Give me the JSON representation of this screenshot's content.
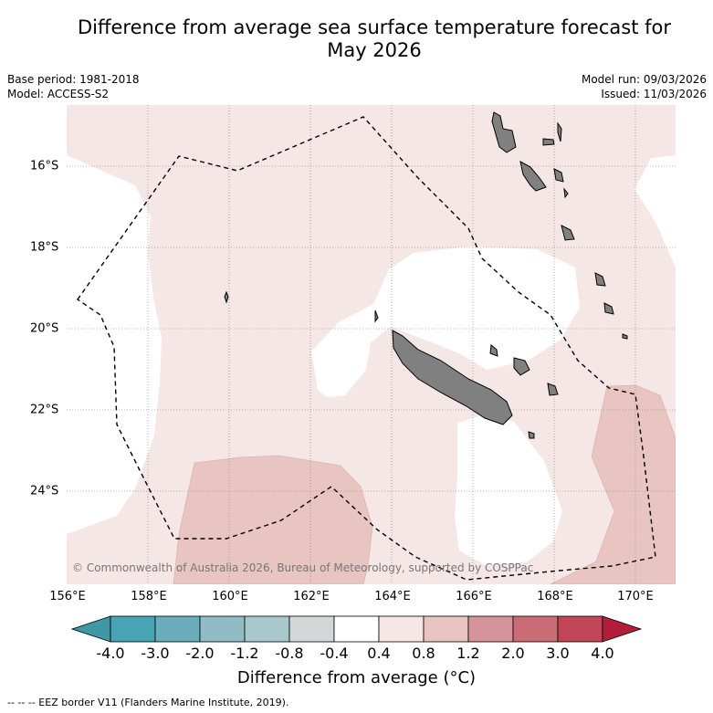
{
  "title_line1": "Difference from average sea surface temperature forecast for",
  "title_line2": "May 2026",
  "base_period": "Base period: 1981-2018",
  "model": "Model: ACCESS-S2",
  "model_run": "Model run: 09/03/2026",
  "issued": "Issued: 11/03/2026",
  "copyright": "© Commonwealth of Australia 2026, Bureau of Meteorology, supported by COSPPac",
  "lon_labels": [
    "156°E",
    "158°E",
    "160°E",
    "162°E",
    "164°E",
    "166°E",
    "168°E",
    "170°E"
  ],
  "lat_labels": [
    "16°S",
    "18°S",
    "20°S",
    "22°S",
    "24°S"
  ],
  "colorbar": {
    "title": "Difference from average (°C)",
    "tick_labels": [
      "-4.0",
      "-3.0",
      "-2.0",
      "-1.2",
      "-0.8",
      "-0.4",
      "0.4",
      "0.8",
      "1.2",
      "2.0",
      "3.0",
      "4.0"
    ],
    "colors": [
      "#3e98a6",
      "#46a4b4",
      "#6aaebc",
      "#8fbcc5",
      "#a8c8cc",
      "#d4d7d7",
      "#ffffff",
      "#f5e7e5",
      "#e8c5c1",
      "#d5949a",
      "#cb6b75",
      "#bf4557",
      "#b21e3c"
    ]
  },
  "colors": {
    "map_warm_light": "#f5e7e5",
    "map_warm_mid": "#e8c5c1",
    "land": "#808080"
  },
  "footnote": "--  --  -- EEZ border V11 (Flanders Marine Institute, 2019)."
}
